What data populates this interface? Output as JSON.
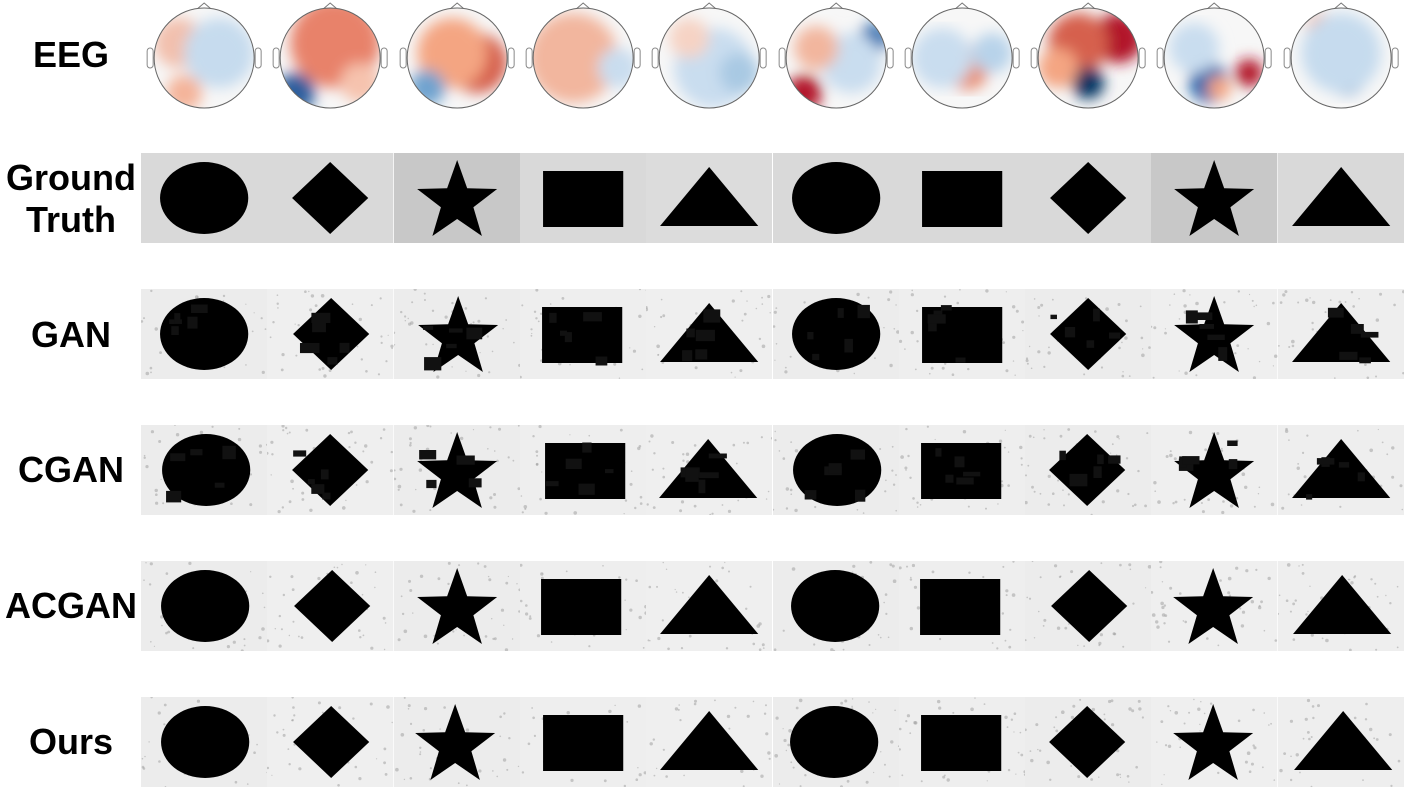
{
  "rows": {
    "eeg": "EEG",
    "ground_truth": [
      "Ground",
      "Truth"
    ],
    "gan": "GAN",
    "cgan": "CGAN",
    "acgan": "ACGAN",
    "ours": "Ours"
  },
  "shapes": [
    "ellipse",
    "diamond",
    "star",
    "rectangle",
    "triangle",
    "ellipse",
    "rectangle",
    "diamond",
    "star",
    "triangle"
  ],
  "ground_truth_backgrounds": [
    "#d9d9d9",
    "#d9d9d9",
    "#c8c8c8",
    "#d9d9d9",
    "#dcdcdc",
    "#d9d9d9",
    "#d9d9d9",
    "#d9d9d9",
    "#c8c8c8",
    "#d9d9d9"
  ],
  "generated_backgrounds": [
    "#ececec",
    "#efefef",
    "#ececec",
    "#eeeeee",
    "#efefef",
    "#ececec",
    "#eeeeee",
    "#ececec",
    "#efefef",
    "#eeeeee"
  ],
  "eeg_maps": [
    {
      "blobs": [
        [
          "#f2c0ad",
          0.25,
          0.35,
          0.25
        ],
        [
          "#c6dbee",
          0.65,
          0.45,
          0.35
        ],
        [
          "#f4b49a",
          0.3,
          0.85,
          0.18
        ]
      ]
    },
    {
      "blobs": [
        [
          "#e8826a",
          0.55,
          0.35,
          0.45
        ],
        [
          "#2f5f9e",
          0.15,
          0.85,
          0.2
        ],
        [
          "#f6c3ae",
          0.8,
          0.75,
          0.2
        ]
      ]
    },
    {
      "blobs": [
        [
          "#d6604d",
          0.7,
          0.55,
          0.3
        ],
        [
          "#f4a582",
          0.45,
          0.45,
          0.35
        ],
        [
          "#6fa3cf",
          0.2,
          0.8,
          0.18
        ]
      ]
    },
    {
      "blobs": [
        [
          "#f2b69e",
          0.4,
          0.5,
          0.45
        ],
        [
          "#c9ddef",
          0.85,
          0.6,
          0.2
        ]
      ]
    },
    {
      "blobs": [
        [
          "#c9ddef",
          0.55,
          0.6,
          0.4
        ],
        [
          "#f6d3c4",
          0.3,
          0.3,
          0.2
        ],
        [
          "#a9c9e3",
          0.8,
          0.65,
          0.2
        ]
      ]
    },
    {
      "blobs": [
        [
          "#b2182b",
          0.18,
          0.85,
          0.18
        ],
        [
          "#2f6fb0",
          0.88,
          0.3,
          0.15
        ],
        [
          "#c9ddef",
          0.65,
          0.55,
          0.3
        ],
        [
          "#f2b69e",
          0.3,
          0.4,
          0.22
        ]
      ]
    },
    {
      "blobs": [
        [
          "#e88e72",
          0.55,
          0.6,
          0.22
        ],
        [
          "#c9ddef",
          0.3,
          0.5,
          0.3
        ],
        [
          "#b8d3ea",
          0.8,
          0.45,
          0.2
        ]
      ]
    },
    {
      "blobs": [
        [
          "#b2182b",
          0.8,
          0.3,
          0.25
        ],
        [
          "#d6604d",
          0.4,
          0.35,
          0.3
        ],
        [
          "#053061",
          0.5,
          0.75,
          0.16
        ],
        [
          "#f4a582",
          0.2,
          0.6,
          0.2
        ]
      ]
    },
    {
      "blobs": [
        [
          "#2166ac",
          0.45,
          0.75,
          0.2
        ],
        [
          "#b2182b",
          0.85,
          0.65,
          0.14
        ],
        [
          "#f4a582",
          0.55,
          0.8,
          0.12
        ],
        [
          "#c9ddef",
          0.3,
          0.4,
          0.25
        ]
      ]
    },
    {
      "blobs": [
        [
          "#4a86c0",
          0.55,
          0.65,
          0.22
        ],
        [
          "#f2b69e",
          0.3,
          0.2,
          0.15
        ],
        [
          "#c6dbee",
          0.5,
          0.45,
          0.4
        ]
      ]
    }
  ]
}
